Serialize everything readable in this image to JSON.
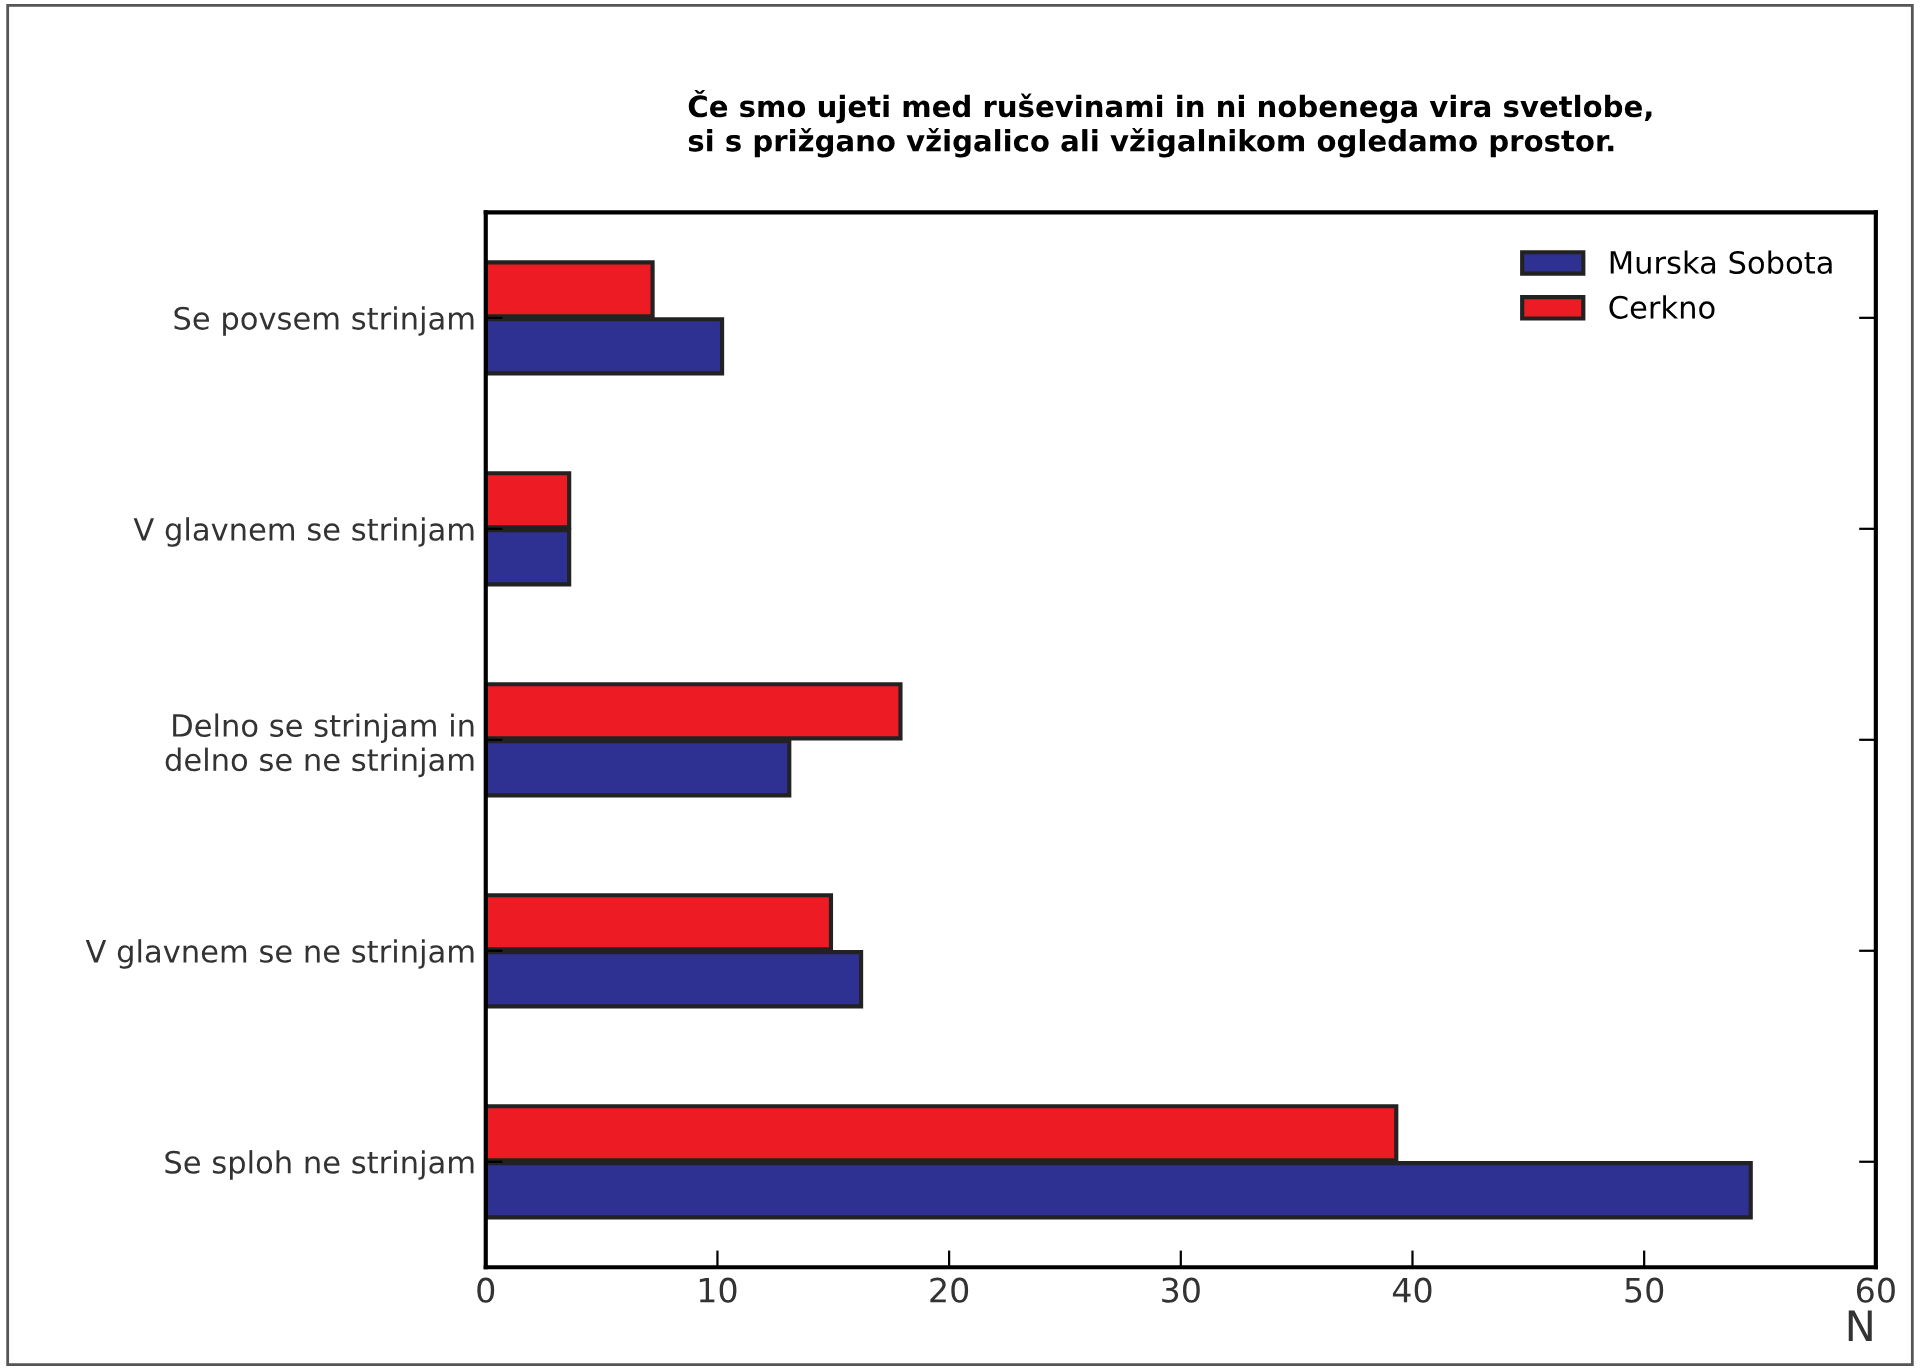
{
  "chart_data": {
    "type": "bar",
    "orientation": "horizontal",
    "title": "Če smo ujeti med ruševinami in ni nobenega vira svetlobe,\nsi s prižgano vžigalico ali vžigalnikom ogledamo prostor.",
    "xlabel": "N",
    "categories": [
      "Se povsem strinjam",
      "V glavnem se strinjam",
      "Delno se strinjam in\ndelno se ne strinjam",
      "V glavnem se ne strinjam",
      "Se sploh ne strinjam"
    ],
    "series": [
      {
        "name": "Murska Sobota",
        "color": "#2e3192",
        "values": [
          10.2,
          3.6,
          13.1,
          16.2,
          54.6
        ]
      },
      {
        "name": "Cerkno",
        "color": "#ed1c24",
        "values": [
          7.2,
          3.6,
          17.9,
          14.9,
          39.3
        ]
      }
    ],
    "xlim": [
      0,
      60
    ],
    "xticks": [
      0,
      10,
      20,
      30,
      40,
      50,
      60
    ],
    "grid": false,
    "legend": "top right"
  }
}
